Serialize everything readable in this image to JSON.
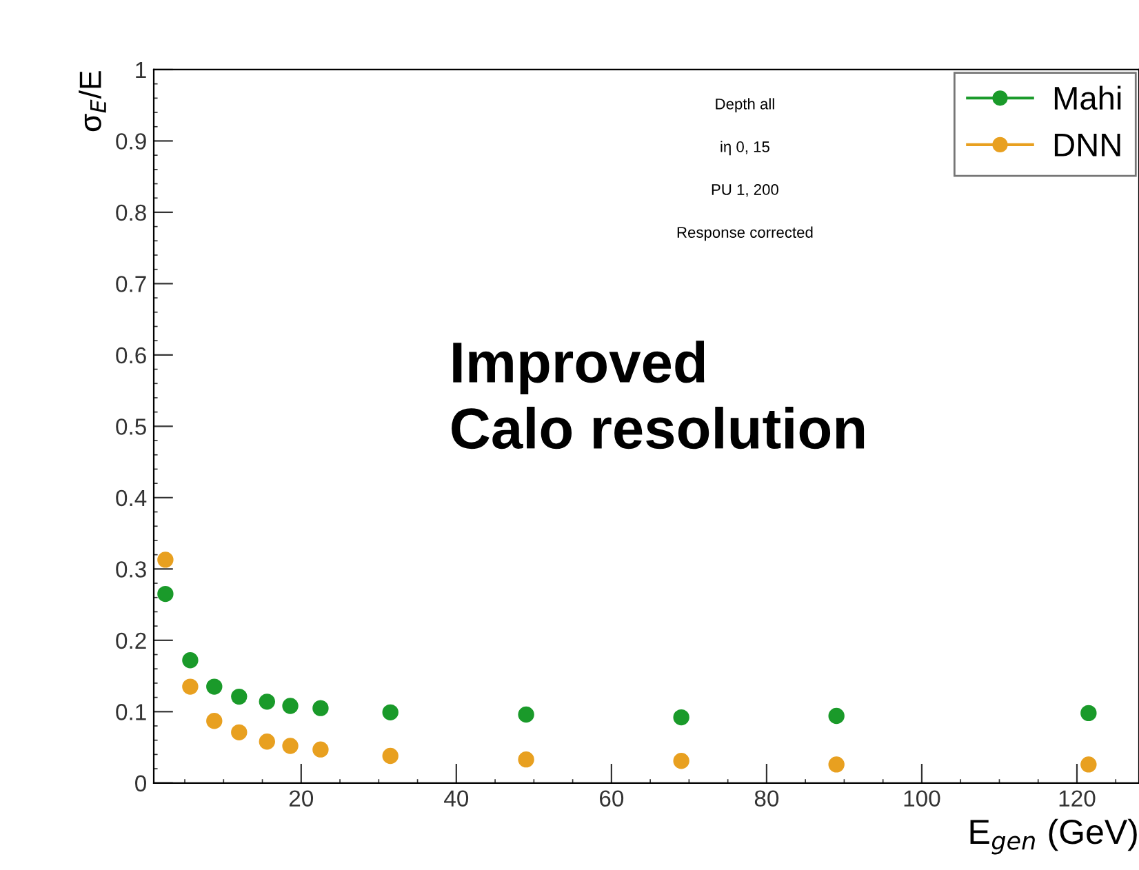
{
  "chart_data": {
    "type": "scatter",
    "xlabel": "E$_{gen}$ (GeV)",
    "ylabel": "σ$_{E}$/E",
    "x": [
      2.5,
      5.7,
      8.8,
      12,
      15.6,
      18.6,
      22.5,
      31.5,
      49,
      69,
      89,
      121.5
    ],
    "series": [
      {
        "name": "Mahi",
        "color": "#1a9a2a",
        "values": [
          0.265,
          0.172,
          0.135,
          0.121,
          0.114,
          0.108,
          0.105,
          0.099,
          0.096,
          0.092,
          0.094,
          0.098
        ]
      },
      {
        "name": "DNN",
        "color": "#e8a020",
        "values": [
          0.313,
          0.135,
          0.087,
          0.071,
          0.058,
          0.052,
          0.047,
          0.038,
          0.033,
          0.031,
          0.026,
          0.026
        ]
      }
    ],
    "xlim": [
      1,
      128
    ],
    "xticks": [
      20,
      40,
      60,
      80,
      100,
      120
    ],
    "ylim": [
      0,
      1
    ],
    "yticks": [
      0,
      0.1,
      0.2,
      0.3,
      0.4,
      0.5,
      0.6,
      0.7,
      0.8,
      0.9,
      1
    ],
    "annotations": [
      "Depth all",
      "iη 0, 15",
      "PU 1, 200",
      "Response corrected",
      "Improved\nCalo resolution"
    ],
    "legend": "top right",
    "grid": false,
    "marker": "circle"
  }
}
